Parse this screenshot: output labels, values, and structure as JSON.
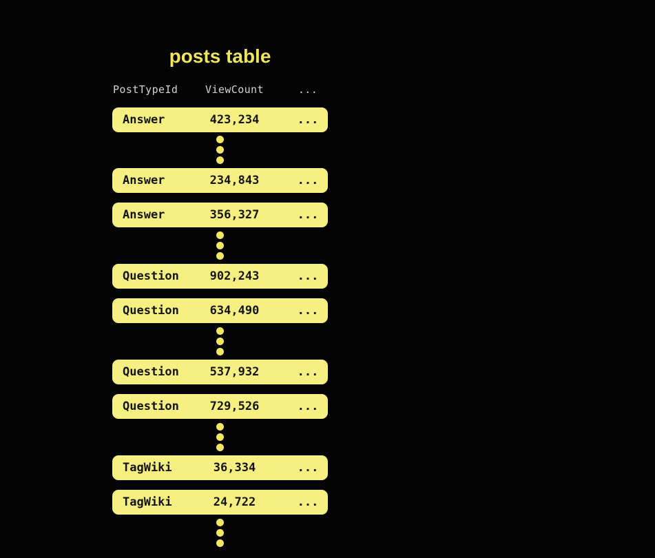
{
  "title": "posts table",
  "table": {
    "columns": [
      {
        "label": "PostTypeId"
      },
      {
        "label": "ViewCount"
      },
      {
        "label": "..."
      }
    ],
    "rows": [
      {
        "post_type": "Answer",
        "view_count": "423,234",
        "more": "..."
      },
      {
        "post_type": "Answer",
        "view_count": "234,843",
        "more": "..."
      },
      {
        "post_type": "Answer",
        "view_count": "356,327",
        "more": "..."
      },
      {
        "post_type": "Question",
        "view_count": "902,243",
        "more": "..."
      },
      {
        "post_type": "Question",
        "view_count": "634,490",
        "more": "..."
      },
      {
        "post_type": "Question",
        "view_count": "537,932",
        "more": "..."
      },
      {
        "post_type": "Question",
        "view_count": "729,526",
        "more": "..."
      },
      {
        "post_type": "TagWiki",
        "view_count": "36,334",
        "more": "..."
      },
      {
        "post_type": "TagWiki",
        "view_count": "24,722",
        "more": "..."
      }
    ]
  },
  "colors": {
    "background": "#030303",
    "title_yellow": "#F0E55F",
    "row_fill": "#F6F083",
    "row_text": "#141414",
    "header_text": "#D5D5D5",
    "dot_yellow": "#F2E765"
  }
}
